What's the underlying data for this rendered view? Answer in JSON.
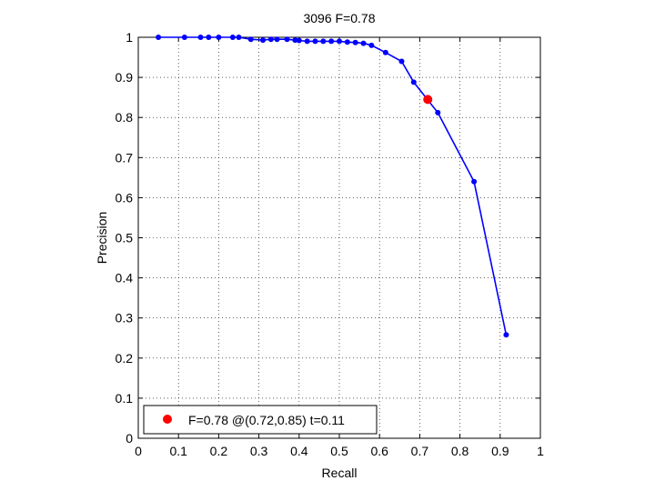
{
  "chart_data": {
    "type": "line",
    "title": "3096 F=0.78",
    "xlabel": "Recall",
    "ylabel": "Precision",
    "xlim": [
      0,
      1
    ],
    "ylim": [
      0,
      1
    ],
    "xticks": [
      "0",
      "0.1",
      "0.2",
      "0.3",
      "0.4",
      "0.5",
      "0.6",
      "0.7",
      "0.8",
      "0.9",
      "1"
    ],
    "yticks": [
      "0",
      "0.1",
      "0.2",
      "0.3",
      "0.4",
      "0.5",
      "0.6",
      "0.7",
      "0.8",
      "0.9",
      "1"
    ],
    "grid": true,
    "legend_position": "bottom-left",
    "series": [
      {
        "color": "#0000ff",
        "points": [
          [
            0.05,
            1.0
          ],
          [
            0.115,
            1.0
          ],
          [
            0.155,
            1.0
          ],
          [
            0.175,
            1.0
          ],
          [
            0.2,
            1.0
          ],
          [
            0.235,
            1.0
          ],
          [
            0.25,
            1.0
          ],
          [
            0.28,
            0.995
          ],
          [
            0.31,
            0.993
          ],
          [
            0.33,
            0.995
          ],
          [
            0.345,
            0.995
          ],
          [
            0.37,
            0.995
          ],
          [
            0.39,
            0.993
          ],
          [
            0.4,
            0.992
          ],
          [
            0.42,
            0.99
          ],
          [
            0.44,
            0.99
          ],
          [
            0.46,
            0.99
          ],
          [
            0.48,
            0.99
          ],
          [
            0.5,
            0.99
          ],
          [
            0.52,
            0.988
          ],
          [
            0.54,
            0.987
          ],
          [
            0.56,
            0.985
          ],
          [
            0.58,
            0.98
          ],
          [
            0.615,
            0.962
          ],
          [
            0.655,
            0.94
          ],
          [
            0.685,
            0.888
          ],
          [
            0.745,
            0.812
          ],
          [
            0.835,
            0.64
          ],
          [
            0.915,
            0.258
          ]
        ]
      }
    ],
    "best_point": {
      "x": 0.72,
      "y": 0.845,
      "color": "#ff0000"
    },
    "legend_text": "F=0.78 @(0.72,0.85) t=0.11"
  }
}
